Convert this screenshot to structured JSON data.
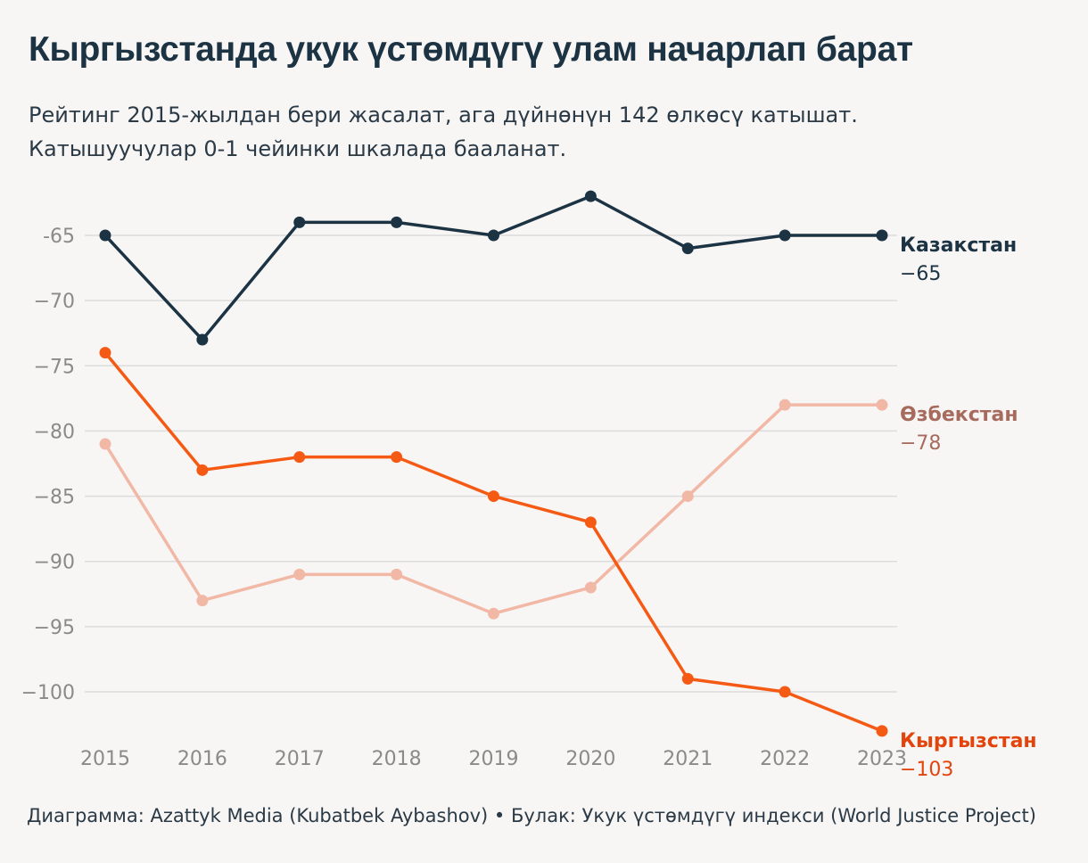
{
  "header": {
    "title": "Кыргызстанда укук үстөмдүгү улам начарлап барат",
    "subtitle_line1": "Рейтинг 2015-жылдан бери жасалат, ага дүйнөнүн 142 өлкөсү катышат.",
    "subtitle_line2": "Катышуучулар 0-1 чейинки шкалада бааланат."
  },
  "footer": {
    "text": "Диаграмма: Azattyk Media (Kubatbek Aybashov) • Булак: Укук үстөмдүгү индекси (World Justice Project)"
  },
  "chart_data": {
    "type": "line",
    "title": "Кыргызстанда укук үстөмдүгү улам начарлап барат",
    "xlabel": "",
    "ylabel": "",
    "x": [
      "2015",
      "2016",
      "2017",
      "2018",
      "2019",
      "2020",
      "2021",
      "2022",
      "2023"
    ],
    "ylim": [
      -103.5,
      -62
    ],
    "yticks": [
      -65,
      -70,
      -75,
      -80,
      -85,
      -90,
      -95,
      -100
    ],
    "ytick_labels": [
      "-65",
      "−70",
      "−75",
      "−80",
      "−85",
      "−90",
      "−95",
      "−100"
    ],
    "grid": true,
    "series": [
      {
        "name": "Казакстан",
        "end_label": "−65",
        "color": "#1c3343",
        "label_color": "#1c3343",
        "values": [
          -65,
          -73,
          -64,
          -64,
          -65,
          -62,
          -66,
          -65,
          -65
        ]
      },
      {
        "name": "Өзбекстан",
        "end_label": "−78",
        "color": "#f2b8a6",
        "label_color": "#a76b5e",
        "values": [
          -81,
          -93,
          -91,
          -91,
          -94,
          -92,
          -85,
          -78,
          -78
        ]
      },
      {
        "name": "Кыргызстан",
        "end_label": "−103",
        "color": "#f55a14",
        "label_color": "#e2440c",
        "values": [
          -74,
          -83,
          -82,
          -82,
          -85,
          -87,
          -99,
          -100,
          -103
        ]
      }
    ]
  }
}
